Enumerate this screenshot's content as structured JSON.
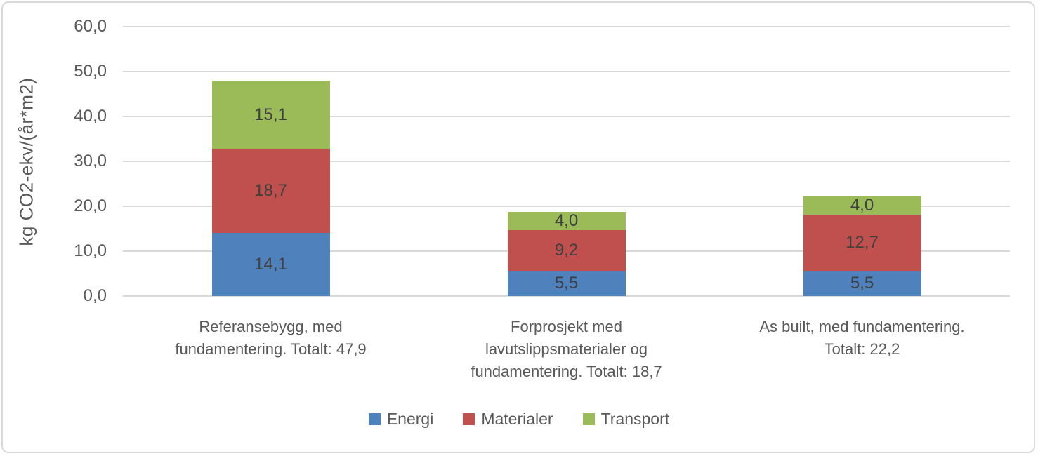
{
  "chart_data": {
    "type": "bar",
    "stacked": true,
    "ylabel": "kg CO2-ekv/(år*m2)",
    "ylim": [
      0,
      60
    ],
    "ytick_step": 10,
    "ytick_labels": [
      "0,0",
      "10,0",
      "20,0",
      "30,0",
      "40,0",
      "50,0",
      "60,0"
    ],
    "grid": true,
    "gridline_color": "#d9d9d9",
    "legend_position": "bottom",
    "categories": [
      "Referansebygg, med fundamentering. Totalt: 47,9",
      "Forprosjekt med lavutslippsmaterialer og fundamentering. Totalt: 18,7",
      "As built, med fundamentering. Totalt: 22,2"
    ],
    "totals": [
      "47,9",
      "18,7",
      "22,2"
    ],
    "series": [
      {
        "name": "Energi",
        "color": "#4f81bd",
        "values": [
          14.1,
          5.5,
          5.5
        ],
        "labels": [
          "14,1",
          "5,5",
          "5,5"
        ]
      },
      {
        "name": "Materialer",
        "color": "#c0504d",
        "values": [
          18.7,
          9.2,
          12.7
        ],
        "labels": [
          "18,7",
          "9,2",
          "12,7"
        ]
      },
      {
        "name": "Transport",
        "color": "#9bbb59",
        "values": [
          15.1,
          4.0,
          4.0
        ],
        "labels": [
          "15,1",
          "4,0",
          "4,0"
        ]
      }
    ],
    "text_color": "#595959",
    "value_label_color": "#404040"
  }
}
